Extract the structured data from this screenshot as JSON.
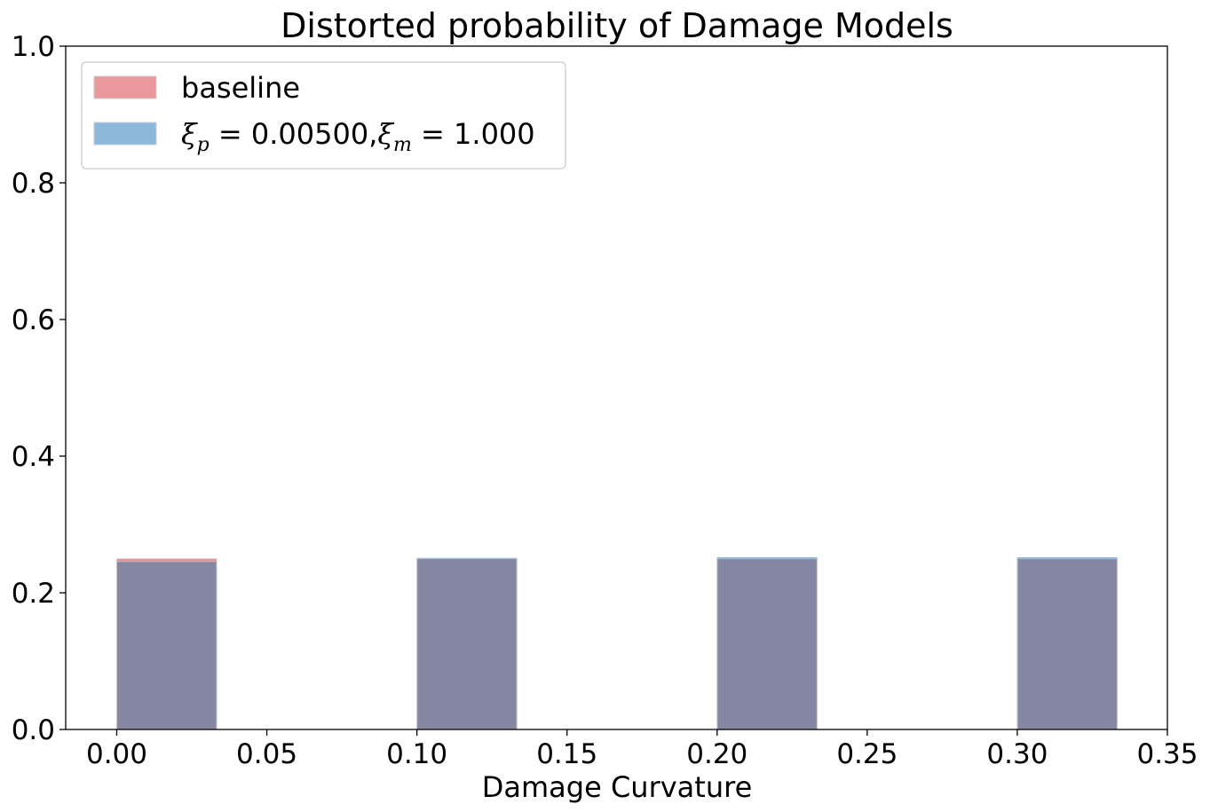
{
  "chart_data": {
    "type": "bar",
    "title": "Distorted probability of Damage Models",
    "xlabel": "Damage Curvature",
    "ylabel": "",
    "xlim": [
      -0.017,
      0.35
    ],
    "ylim": [
      0.0,
      1.0
    ],
    "xticks": [
      "0.00",
      "0.05",
      "0.10",
      "0.15",
      "0.20",
      "0.25",
      "0.30",
      "0.35"
    ],
    "yticks": [
      "0.0",
      "0.2",
      "0.4",
      "0.6",
      "0.8",
      "1.0"
    ],
    "bar_width": 0.0333,
    "x": [
      0.0,
      0.1,
      0.2,
      0.3
    ],
    "series": [
      {
        "name": "baseline",
        "color": "#e47f82",
        "values": [
          0.25,
          0.25,
          0.25,
          0.25
        ]
      },
      {
        "name": "ξp = 0.00500, ξm = 1.000",
        "color": "#6ea6d2",
        "values": [
          0.246,
          0.251,
          0.252,
          0.252
        ]
      }
    ],
    "overlap_color": "#8587a2",
    "grid": false,
    "legend_position": "top-left"
  }
}
